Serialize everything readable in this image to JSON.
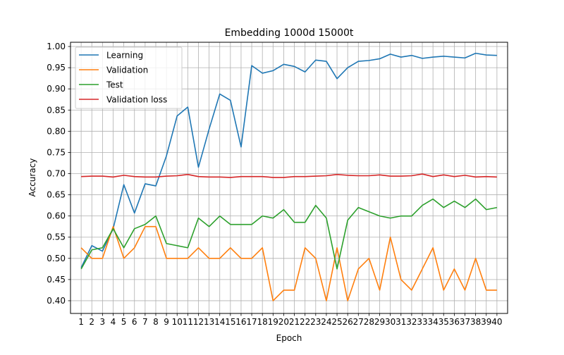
{
  "chart_data": {
    "type": "line",
    "title": "Embedding 1000d 15000t",
    "xlabel": "Epoch",
    "ylabel": "Accuracy",
    "xlim": [
      0,
      41
    ],
    "ylim": [
      0.37,
      1.01
    ],
    "grid": true,
    "legend_position": "top-left",
    "x": [
      1,
      2,
      3,
      4,
      5,
      6,
      7,
      8,
      9,
      10,
      11,
      12,
      13,
      14,
      15,
      16,
      17,
      18,
      19,
      20,
      21,
      22,
      23,
      24,
      25,
      26,
      27,
      28,
      29,
      30,
      31,
      32,
      33,
      34,
      35,
      36,
      37,
      38,
      39,
      40
    ],
    "x_ticks": [
      "1",
      "2",
      "3",
      "4",
      "5",
      "6",
      "7",
      "8",
      "9",
      "10",
      "11",
      "12",
      "13",
      "14",
      "15",
      "16",
      "17",
      "18",
      "19",
      "20",
      "21",
      "22",
      "23",
      "24",
      "25",
      "26",
      "27",
      "28",
      "29",
      "30",
      "31",
      "32",
      "33",
      "34",
      "35",
      "36",
      "37",
      "38",
      "39",
      "40"
    ],
    "y_ticks": [
      "0.40",
      "0.45",
      "0.50",
      "0.55",
      "0.60",
      "0.65",
      "0.70",
      "0.75",
      "0.80",
      "0.85",
      "0.90",
      "0.95",
      "1.00"
    ],
    "y_tick_values": [
      0.4,
      0.45,
      0.5,
      0.55,
      0.6,
      0.65,
      0.7,
      0.75,
      0.8,
      0.85,
      0.9,
      0.95,
      1.0
    ],
    "series": [
      {
        "name": "Learning",
        "color": "#1f77b4",
        "values": [
          0.478,
          0.53,
          0.517,
          0.57,
          0.674,
          0.607,
          0.676,
          0.671,
          0.742,
          0.836,
          0.857,
          0.715,
          0.805,
          0.888,
          0.873,
          0.763,
          0.955,
          0.937,
          0.943,
          0.958,
          0.953,
          0.94,
          0.968,
          0.965,
          0.924,
          0.95,
          0.965,
          0.967,
          0.971,
          0.982,
          0.975,
          0.979,
          0.972,
          0.975,
          0.977,
          0.975,
          0.973,
          0.984,
          0.98,
          0.979
        ]
      },
      {
        "name": "Validation",
        "color": "#ff7f0e",
        "values": [
          0.525,
          0.5,
          0.5,
          0.575,
          0.5,
          0.525,
          0.575,
          0.575,
          0.5,
          0.5,
          0.5,
          0.525,
          0.5,
          0.5,
          0.525,
          0.5,
          0.5,
          0.525,
          0.4,
          0.425,
          0.425,
          0.525,
          0.5,
          0.4,
          0.525,
          0.4,
          0.475,
          0.5,
          0.425,
          0.55,
          0.45,
          0.425,
          0.475,
          0.525,
          0.425,
          0.475,
          0.425,
          0.5,
          0.425,
          0.425
        ]
      },
      {
        "name": "Test",
        "color": "#2ca02c",
        "values": [
          0.475,
          0.52,
          0.525,
          0.57,
          0.525,
          0.57,
          0.58,
          0.6,
          0.535,
          0.53,
          0.525,
          0.595,
          0.575,
          0.6,
          0.58,
          0.58,
          0.58,
          0.6,
          0.595,
          0.615,
          0.585,
          0.585,
          0.625,
          0.595,
          0.475,
          0.59,
          0.62,
          0.61,
          0.6,
          0.595,
          0.6,
          0.6,
          0.625,
          0.64,
          0.62,
          0.635,
          0.62,
          0.64,
          0.615,
          0.62
        ]
      },
      {
        "name": "Validation loss",
        "color": "#d62728",
        "values": [
          0.693,
          0.694,
          0.694,
          0.692,
          0.696,
          0.693,
          0.692,
          0.692,
          0.694,
          0.695,
          0.698,
          0.693,
          0.692,
          0.692,
          0.691,
          0.693,
          0.693,
          0.693,
          0.691,
          0.691,
          0.693,
          0.693,
          0.694,
          0.695,
          0.698,
          0.696,
          0.695,
          0.695,
          0.697,
          0.694,
          0.694,
          0.695,
          0.699,
          0.693,
          0.697,
          0.693,
          0.696,
          0.692,
          0.693,
          0.692
        ]
      }
    ]
  }
}
